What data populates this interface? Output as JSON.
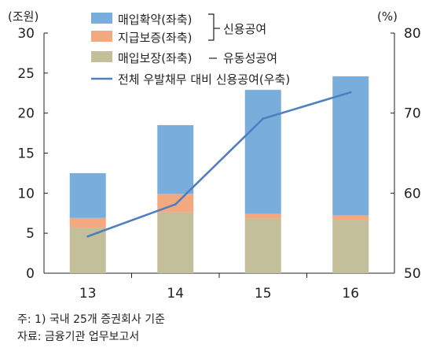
{
  "chart_data": {
    "type": "bar",
    "categories": [
      "13",
      "14",
      "15",
      "16"
    ],
    "y_left_unit": "(조원)",
    "y_right_unit": "(%)",
    "ylim": [
      0,
      30
    ],
    "y2lim": [
      50,
      80
    ],
    "y_ticks": [
      0,
      5,
      10,
      15,
      20,
      25,
      30
    ],
    "y2_ticks": [
      50,
      60,
      70,
      80
    ],
    "series": [
      {
        "name": "매입보장(좌축)",
        "type": "bar",
        "axis": "left",
        "color": "#c2bf9a",
        "values": [
          5.7,
          7.6,
          6.8,
          6.6
        ]
      },
      {
        "name": "지급보증(좌축)",
        "type": "bar",
        "axis": "left",
        "color": "#f3a97f",
        "values": [
          1.2,
          2.3,
          0.6,
          0.6
        ]
      },
      {
        "name": "매입확약(좌축)",
        "type": "bar",
        "axis": "left",
        "color": "#79aedc",
        "values": [
          5.6,
          8.6,
          15.5,
          17.4
        ]
      },
      {
        "name": "전체 우발채무 대비 신용공여(우축)",
        "type": "line",
        "axis": "right",
        "color": "#4e7fbf",
        "values": [
          54.6,
          58.6,
          69.3,
          72.6
        ]
      }
    ],
    "legend_groups": [
      {
        "label": "신용공여",
        "members": [
          "매입확약(좌축)",
          "지급보증(좌축)"
        ]
      },
      {
        "label": "유동성공여",
        "members": [
          "매입보장(좌축)"
        ]
      }
    ],
    "legend_placement": "top-left",
    "grid": false
  },
  "notes": {
    "line1": "주: 1) 국내 25개 증권회사 기준",
    "line2": "자료: 금융기관 업무보고서"
  }
}
